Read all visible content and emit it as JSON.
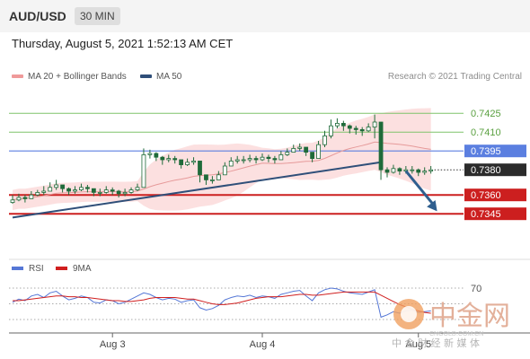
{
  "header": {
    "pair": "AUD/USD",
    "timeframe": "30 MIN",
    "datetime": "Thursday, August 5, 2021 1:52:13 AM CET"
  },
  "legend": {
    "bb_label": "MA 20 + Bollinger Bands",
    "ma50_label": "MA 50",
    "copyright": "Research © 2021 Trading Central"
  },
  "osc_legend": {
    "rsi_label": "RSI",
    "ma9_label": "9MA"
  },
  "watermark": {
    "main": "中金网",
    "sub": "CNGOLD.COM.CN",
    "tagline": "中 金 财 经 新 媒 体"
  },
  "colors": {
    "bb_fill": "#fbd6d6",
    "bb_legend": "#ef9a9a",
    "ma50": "#2f4f79",
    "candle": "#1f6b3a",
    "green_level": "#7fc36a",
    "blue_level": "#5b7fe0",
    "red_level": "#cc1f1f",
    "last_price": "#2b2b2b",
    "arrow": "#2f5f8f",
    "rsi": "#5577d6",
    "ma9": "#d01f1f"
  },
  "chart_data": [
    {
      "type": "candlestick",
      "title": "AUD/USD",
      "timeframe": "30 MIN",
      "x_tick_labels": [
        "Aug 3",
        "Aug 4",
        "Aug 5"
      ],
      "ylim": [
        0.7332,
        0.7436
      ],
      "levels": [
        {
          "value": 0.7425,
          "label": "0.7425",
          "kind": "resistance"
        },
        {
          "value": 0.741,
          "label": "0.7410",
          "kind": "resistance"
        },
        {
          "value": 0.7395,
          "label": "0.7395",
          "kind": "pivot"
        },
        {
          "value": 0.738,
          "label": "0.7380",
          "kind": "last"
        },
        {
          "value": 0.736,
          "label": "0.7360",
          "kind": "support"
        },
        {
          "value": 0.7345,
          "label": "0.7345",
          "kind": "support"
        }
      ],
      "trendline": {
        "start": [
          0,
          0.7342
        ],
        "end": [
          59,
          0.7386
        ]
      },
      "forecast_arrow": {
        "start": [
          63,
          0.7379
        ],
        "end": [
          68,
          0.7347
        ]
      },
      "close": [
        0.7356,
        0.7358,
        0.7357,
        0.736,
        0.7362,
        0.7363,
        0.7366,
        0.7368,
        0.7365,
        0.7363,
        0.7364,
        0.7366,
        0.7365,
        0.7362,
        0.7362,
        0.7364,
        0.7363,
        0.7361,
        0.7362,
        0.7364,
        0.7366,
        0.7392,
        0.7393,
        0.739,
        0.7388,
        0.7389,
        0.7388,
        0.7384,
        0.7386,
        0.7387,
        0.7376,
        0.7372,
        0.7372,
        0.7376,
        0.7383,
        0.7387,
        0.7388,
        0.7388,
        0.7389,
        0.7388,
        0.739,
        0.7389,
        0.7388,
        0.7392,
        0.7394,
        0.7397,
        0.7398,
        0.7394,
        0.7389,
        0.74,
        0.7407,
        0.7415,
        0.7417,
        0.7415,
        0.7413,
        0.7412,
        0.7411,
        0.7414,
        0.7418,
        0.738,
        0.7378,
        0.7381,
        0.7379,
        0.738,
        0.738,
        0.7378,
        0.7379,
        0.738
      ],
      "high": [
        0.736,
        0.7361,
        0.736,
        0.7363,
        0.7364,
        0.7367,
        0.737,
        0.7372,
        0.7368,
        0.7366,
        0.7367,
        0.7369,
        0.7368,
        0.7365,
        0.7365,
        0.7367,
        0.7366,
        0.7364,
        0.7365,
        0.7366,
        0.7369,
        0.7397,
        0.7396,
        0.7394,
        0.7391,
        0.7392,
        0.7391,
        0.7388,
        0.7389,
        0.739,
        0.738,
        0.7375,
        0.7375,
        0.7379,
        0.7386,
        0.739,
        0.7391,
        0.7391,
        0.7392,
        0.7391,
        0.7393,
        0.7392,
        0.7391,
        0.7395,
        0.7397,
        0.74,
        0.7401,
        0.7397,
        0.7392,
        0.7403,
        0.7411,
        0.742,
        0.7421,
        0.7419,
        0.7416,
        0.7415,
        0.7414,
        0.7417,
        0.7424,
        0.74,
        0.7382,
        0.7384,
        0.7382,
        0.7383,
        0.7383,
        0.7381,
        0.7382,
        0.7383
      ],
      "low": [
        0.7353,
        0.7355,
        0.7354,
        0.7357,
        0.7359,
        0.736,
        0.7363,
        0.7364,
        0.7362,
        0.736,
        0.7361,
        0.7363,
        0.7362,
        0.7359,
        0.7359,
        0.7361,
        0.736,
        0.7358,
        0.7359,
        0.7361,
        0.7363,
        0.7366,
        0.7389,
        0.7387,
        0.7384,
        0.7386,
        0.7385,
        0.7381,
        0.7383,
        0.7384,
        0.737,
        0.7368,
        0.7369,
        0.7372,
        0.738,
        0.7384,
        0.7385,
        0.7385,
        0.7386,
        0.7385,
        0.7387,
        0.7386,
        0.7385,
        0.7389,
        0.7391,
        0.7394,
        0.7395,
        0.7391,
        0.7386,
        0.7389,
        0.7398,
        0.7405,
        0.7413,
        0.7411,
        0.7409,
        0.7408,
        0.7407,
        0.741,
        0.7405,
        0.7372,
        0.7374,
        0.7377,
        0.7376,
        0.7377,
        0.7377,
        0.7375,
        0.7376,
        0.7377
      ]
    },
    {
      "type": "line",
      "title": "RSI",
      "x_tick_labels": [
        "Aug 3",
        "Aug 4",
        "Aug 5"
      ],
      "ylim": [
        20,
        80
      ],
      "y_tick_labels": [
        "70"
      ],
      "reference_lines": [
        70,
        50,
        30
      ],
      "series": [
        {
          "name": "RSI",
          "values": [
            52,
            56,
            54,
            60,
            62,
            58,
            64,
            66,
            60,
            55,
            57,
            60,
            58,
            52,
            51,
            55,
            54,
            50,
            52,
            56,
            60,
            64,
            62,
            58,
            55,
            57,
            56,
            52,
            54,
            55,
            45,
            42,
            44,
            48,
            55,
            58,
            60,
            59,
            61,
            58,
            60,
            59,
            57,
            62,
            64,
            66,
            67,
            60,
            54,
            64,
            68,
            70,
            69,
            66,
            64,
            63,
            62,
            65,
            68,
            33,
            36,
            40,
            38,
            41,
            42,
            39,
            40,
            41
          ]
        },
        {
          "name": "9MA",
          "values": [
            54,
            54,
            55,
            56,
            57,
            58,
            59,
            60,
            60,
            59,
            59,
            58,
            58,
            57,
            56,
            55,
            54,
            54,
            53,
            53,
            54,
            55,
            57,
            58,
            58,
            58,
            58,
            57,
            56,
            56,
            54,
            52,
            50,
            49,
            49,
            50,
            51,
            53,
            55,
            57,
            58,
            59,
            59,
            59,
            60,
            61,
            62,
            62,
            61,
            61,
            62,
            63,
            64,
            65,
            65,
            65,
            65,
            65,
            65,
            61,
            57,
            53,
            49,
            46,
            43,
            41,
            39,
            38
          ]
        }
      ]
    }
  ]
}
